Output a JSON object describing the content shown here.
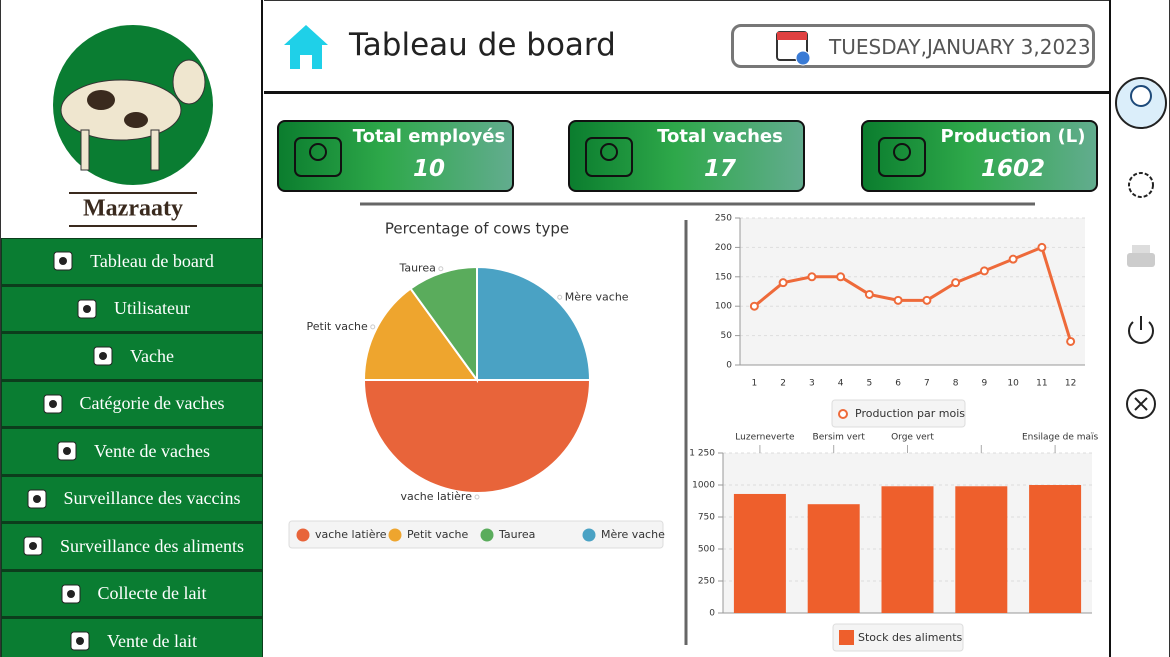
{
  "sidebar": {
    "brand": "Mazraaty",
    "menu": [
      "Tableau de board",
      "Utilisateur",
      "Vache",
      "Catégorie de vaches",
      "Vente de vaches",
      "Surveillance des vaccins",
      "Surveillance des aliments",
      "Collecte de lait",
      "Vente de lait"
    ]
  },
  "header": {
    "title": "Tableau de board",
    "date": "TUESDAY,JANUARY 3,2023"
  },
  "cards": [
    {
      "label": "Total employés",
      "value": 10
    },
    {
      "label": "Total vaches",
      "value": 17
    },
    {
      "label": "Production (L)",
      "value": 1602
    }
  ],
  "chart_data": [
    {
      "type": "pie",
      "title": "Percentage of cows type",
      "categories": [
        "vache latière",
        "Petit vache",
        "Taurea",
        "Mère vache"
      ],
      "values": [
        50,
        15,
        10,
        25
      ],
      "colors": [
        "#e8643a",
        "#eea52e",
        "#5aac5c",
        "#4aa2c4"
      ]
    },
    {
      "type": "line",
      "categories": [
        "1",
        "2",
        "3",
        "4",
        "5",
        "6",
        "7",
        "8",
        "9",
        "10",
        "11",
        "12"
      ],
      "series": [
        {
          "name": "Production par mois",
          "color": "#ee6a3a",
          "values": [
            100,
            140,
            150,
            150,
            120,
            110,
            110,
            140,
            160,
            180,
            200,
            40
          ]
        }
      ],
      "ylim": [
        0,
        250
      ],
      "yticks": [
        0,
        50,
        100,
        150,
        200,
        250
      ],
      "grid": true
    },
    {
      "type": "bar",
      "categories": [
        "Luzerneverte",
        "Bersim vert",
        "Orge vert",
        null,
        "Ensilage de maïs"
      ],
      "series": [
        {
          "name": "Stock des aliments",
          "color": "#ee5f2c",
          "values": [
            930,
            850,
            990,
            990,
            1000
          ]
        }
      ],
      "ylim": [
        0,
        1250
      ],
      "yticks": [
        0,
        250,
        500,
        750,
        1000,
        {
          "value": 1250,
          "label": "1 250"
        }
      ],
      "grid": true
    }
  ]
}
